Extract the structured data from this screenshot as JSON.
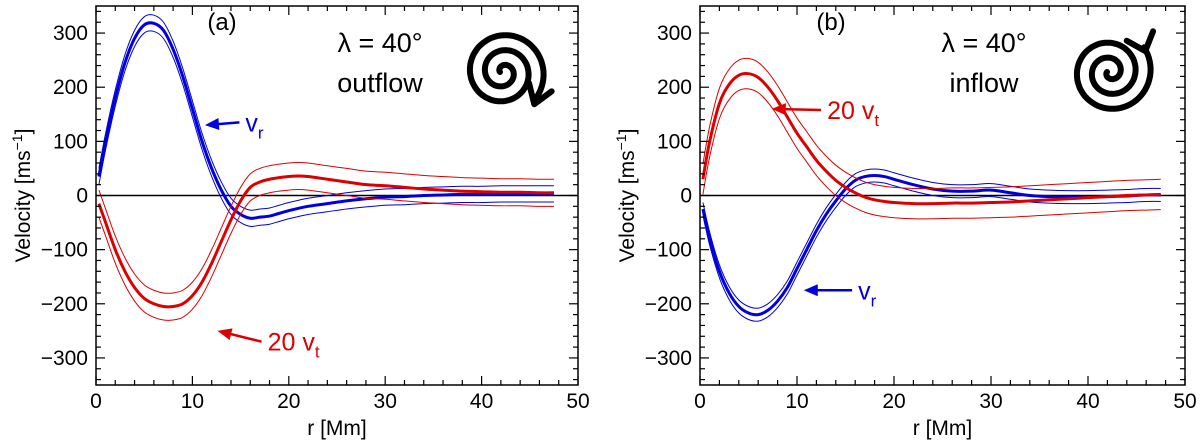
{
  "chart_data": [
    {
      "type": "line",
      "panel_label": "(a)",
      "annotation_lines": [
        "λ = 40°",
        "outflow"
      ],
      "swirl_icon": "outflow-spiral-icon",
      "xlabel": "r [Mm]",
      "ylabel_main": "Velocity [ms",
      "ylabel_sup": "−1",
      "ylabel_end": "]",
      "xlim": [
        0,
        50
      ],
      "ylim": [
        -350,
        350
      ],
      "xticks": [
        "0",
        "10",
        "20",
        "30",
        "40",
        "50"
      ],
      "yticks": [
        "−300",
        "−200",
        "−100",
        "0",
        "100",
        "200",
        "300"
      ],
      "zero_line": true,
      "series": [
        {
          "name": "v_r",
          "label_main": "v",
          "label_sub": "r",
          "color": "#0000dd",
          "uncertainty_band": 15,
          "x": [
            0.3,
            1,
            2,
            3,
            4,
            5,
            6,
            7,
            8,
            9,
            10,
            11,
            12,
            13,
            14,
            15,
            16,
            17,
            18,
            19,
            20,
            22,
            24,
            26,
            28,
            30,
            32,
            34,
            36,
            38,
            40,
            42,
            44,
            46,
            47.5
          ],
          "y": [
            35,
            100,
            180,
            245,
            290,
            315,
            318,
            305,
            270,
            220,
            160,
            100,
            50,
            10,
            -20,
            -35,
            -42,
            -40,
            -38,
            -33,
            -28,
            -20,
            -15,
            -10,
            -6,
            -3,
            -2,
            0,
            1,
            2,
            2,
            3,
            3,
            3,
            3
          ]
        },
        {
          "name": "20 v_t",
          "label_main": "20 v",
          "label_sub": "t",
          "color": "#dd0000",
          "uncertainty_band": 25,
          "x": [
            0.3,
            1,
            2,
            3,
            4,
            5,
            6,
            7,
            8,
            9,
            10,
            11,
            12,
            13,
            14,
            15,
            16,
            17,
            18,
            19,
            20,
            21,
            22,
            24,
            26,
            28,
            30,
            32,
            34,
            36,
            38,
            40,
            42,
            44,
            46,
            47.5
          ],
          "y": [
            -15,
            -50,
            -100,
            -140,
            -170,
            -190,
            -200,
            -205,
            -205,
            -200,
            -185,
            -160,
            -125,
            -85,
            -45,
            -10,
            15,
            25,
            30,
            33,
            35,
            36,
            35,
            30,
            25,
            20,
            18,
            15,
            12,
            10,
            8,
            7,
            6,
            6,
            5,
            5
          ]
        }
      ],
      "series_labels": [
        {
          "for": "v_r",
          "x": 15.5,
          "y": 135,
          "arrow_to_x": 11.3,
          "arrow_to_y": 130
        },
        {
          "for": "20 v_t",
          "x": 17.8,
          "y": -270,
          "arrow_to_x": 12.6,
          "arrow_to_y": -250
        }
      ]
    },
    {
      "type": "line",
      "panel_label": "(b)",
      "annotation_lines": [
        "λ = 40°",
        "inflow"
      ],
      "swirl_icon": "inflow-spiral-icon",
      "xlabel": "r [Mm]",
      "ylabel_main": "Velocity [ms",
      "ylabel_sup": "−1",
      "ylabel_end": "]",
      "xlim": [
        0,
        50
      ],
      "ylim": [
        -350,
        350
      ],
      "xticks": [
        "0",
        "10",
        "20",
        "30",
        "40",
        "50"
      ],
      "yticks": [
        "−300",
        "−200",
        "−100",
        "0",
        "100",
        "200",
        "300"
      ],
      "zero_line": true,
      "series": [
        {
          "name": "v_r",
          "label_main": "v",
          "label_sub": "r",
          "color": "#0000dd",
          "uncertainty_band": 12,
          "x": [
            0.3,
            1,
            2,
            3,
            4,
            5,
            6,
            7,
            8,
            9,
            10,
            11,
            12,
            13,
            14,
            15,
            16,
            17,
            18,
            19,
            20,
            22,
            24,
            26,
            28,
            30,
            32,
            34,
            36,
            38,
            40,
            42,
            44,
            46,
            47.5
          ],
          "y": [
            -25,
            -80,
            -140,
            -180,
            -205,
            -217,
            -220,
            -212,
            -195,
            -170,
            -135,
            -100,
            -65,
            -35,
            -10,
            12,
            28,
            35,
            37,
            35,
            30,
            20,
            12,
            8,
            8,
            10,
            5,
            0,
            -2,
            -3,
            -3,
            -2,
            -1,
            1,
            1
          ]
        },
        {
          "name": "20 v_t",
          "label_main": "20 v",
          "label_sub": "t",
          "color": "#dd0000",
          "uncertainty_band": 28,
          "x": [
            0.3,
            1,
            2,
            3,
            4,
            5,
            6,
            7,
            8,
            9,
            10,
            11,
            12,
            13,
            14,
            15,
            16,
            17,
            18,
            19,
            20,
            22,
            24,
            26,
            28,
            30,
            32,
            34,
            36,
            38,
            40,
            42,
            44,
            46,
            47.5
          ],
          "y": [
            30,
            100,
            170,
            205,
            222,
            225,
            218,
            200,
            175,
            145,
            115,
            90,
            65,
            45,
            28,
            15,
            5,
            -3,
            -8,
            -11,
            -13,
            -15,
            -15,
            -14,
            -14,
            -13,
            -12,
            -10,
            -8,
            -6,
            -4,
            -2,
            0,
            1,
            2
          ]
        }
      ],
      "series_labels": [
        {
          "for": "20 v_t",
          "x": 13.1,
          "y": 158,
          "arrow_to_x": 7.4,
          "arrow_to_y": 160
        },
        {
          "for": "v_r",
          "x": 16.3,
          "y": -175,
          "arrow_to_x": 10.7,
          "arrow_to_y": -175
        }
      ]
    }
  ]
}
